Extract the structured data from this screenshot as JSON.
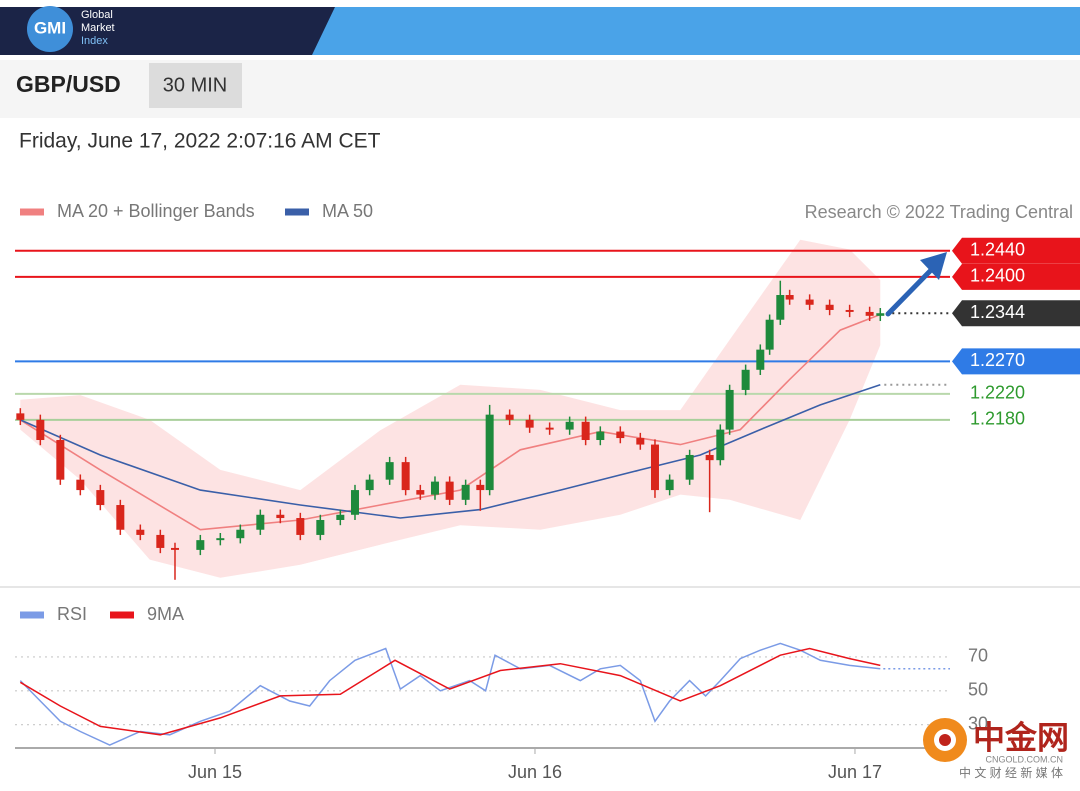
{
  "header": {
    "logo": "GMI",
    "brand": [
      "Global",
      "Market",
      "Index"
    ]
  },
  "instrument": "GBP/USD",
  "timeframe": "30 MIN",
  "timestamp": "Friday, June 17, 2022 2:07:16 AM CET",
  "watermark": {
    "name": "中金网",
    "site": "CNGOLD.COM.CN",
    "slogan": "中 文 财 经 新 媒 体"
  },
  "chart_data": [
    {
      "type": "candlestick",
      "credit": "Research © 2022 Trading Central",
      "xlim": [
        -15,
        55
      ],
      "ylim": [
        1.1926,
        1.2472
      ],
      "up_color": "#1e8a3c",
      "down_color": "#d9261c",
      "x": [
        -14.6,
        -13.1,
        -11.6,
        -10.1,
        -8.6,
        -7.1,
        -5.6,
        -4.1,
        -3,
        -1.1,
        0.4,
        1.9,
        3.4,
        4.9,
        6.4,
        7.9,
        9.4,
        10.5,
        11.6,
        13.1,
        14.3,
        15.4,
        16.5,
        17.6,
        18.8,
        19.9,
        20.6,
        22.1,
        23.6,
        25.1,
        26.6,
        27.8,
        28.9,
        30.4,
        31.9,
        33,
        34.1,
        35.6,
        37.1,
        37.9,
        38.6,
        39.8,
        40.9,
        41.6,
        42.4,
        43.1,
        44.6,
        46.1,
        47.6,
        49.1,
        49.9
      ],
      "open": [
        1.219,
        1.218,
        1.2149,
        1.2088,
        1.2072,
        1.2049,
        1.2011,
        1.2003,
        1.1983,
        1.198,
        1.1995,
        1.1998,
        1.2011,
        1.2034,
        1.2029,
        1.2003,
        1.2026,
        1.2034,
        1.2072,
        1.2088,
        1.2115,
        1.2072,
        1.2065,
        1.2085,
        1.2057,
        1.208,
        1.2072,
        1.2188,
        1.218,
        1.2168,
        1.2165,
        1.2177,
        1.2149,
        1.2162,
        1.2152,
        1.2142,
        1.2072,
        1.2088,
        1.2126,
        1.2118,
        1.2165,
        1.2226,
        1.2257,
        1.2288,
        1.2334,
        1.2372,
        1.2365,
        1.2357,
        1.2349,
        1.2346,
        1.234
      ],
      "high": [
        1.2198,
        1.2188,
        1.2157,
        1.2096,
        1.208,
        1.2057,
        1.2019,
        1.2011,
        1.1991,
        1.2003,
        1.2006,
        1.2019,
        1.2042,
        1.2042,
        1.2037,
        1.2034,
        1.2042,
        1.208,
        1.2096,
        1.2123,
        1.2123,
        1.208,
        1.2093,
        1.2093,
        1.2088,
        1.2088,
        1.2203,
        1.2196,
        1.2188,
        1.2176,
        1.2185,
        1.2185,
        1.217,
        1.217,
        1.216,
        1.215,
        1.2096,
        1.2134,
        1.2134,
        1.2173,
        1.2234,
        1.2265,
        1.2296,
        1.2342,
        1.2394,
        1.238,
        1.2373,
        1.2365,
        1.2357,
        1.2354,
        1.2352
      ],
      "low": [
        1.2172,
        1.2141,
        1.208,
        1.2064,
        1.2041,
        1.2003,
        1.1995,
        1.1975,
        1.1934,
        1.1972,
        1.1987,
        1.199,
        1.2003,
        1.2021,
        1.1995,
        1.1995,
        1.2018,
        1.2026,
        1.2064,
        1.208,
        1.2064,
        1.2057,
        1.2057,
        1.2049,
        1.2049,
        1.204,
        1.2064,
        1.2172,
        1.216,
        1.2157,
        1.2157,
        1.2141,
        1.2141,
        1.2144,
        1.2134,
        1.206,
        1.2064,
        1.208,
        1.2038,
        1.211,
        1.2157,
        1.2218,
        1.2249,
        1.228,
        1.2326,
        1.2357,
        1.2349,
        1.2341,
        1.2338,
        1.2332,
        1.2332
      ],
      "close": [
        1.218,
        1.2149,
        1.2088,
        1.2072,
        1.2049,
        1.2011,
        1.2003,
        1.1983,
        1.198,
        1.1995,
        1.1998,
        1.2011,
        1.2034,
        1.2029,
        1.2003,
        1.2026,
        1.2034,
        1.2072,
        1.2088,
        1.2115,
        1.2072,
        1.2065,
        1.2085,
        1.2057,
        1.208,
        1.2072,
        1.2188,
        1.218,
        1.2168,
        1.2165,
        1.2177,
        1.2149,
        1.2162,
        1.2152,
        1.2142,
        1.2072,
        1.2088,
        1.2126,
        1.2118,
        1.2165,
        1.2226,
        1.2257,
        1.2288,
        1.2334,
        1.2372,
        1.2365,
        1.2357,
        1.2349,
        1.2346,
        1.234,
        1.2344
      ],
      "band": {
        "color": "#fcd9d9",
        "x": [
          -14.6,
          -10.1,
          -4.9,
          0.4,
          6.4,
          12.4,
          18.4,
          24.4,
          30.4,
          34.9,
          38.6,
          43.9,
          47.6,
          49.9
        ],
        "upper": [
          1.2211,
          1.2218,
          1.218,
          1.2103,
          1.2072,
          1.2164,
          1.2234,
          1.2226,
          1.2195,
          1.2195,
          1.2303,
          1.2457,
          1.2442,
          1.2395
        ],
        "lower": [
          1.2165,
          1.2088,
          1.1965,
          1.1937,
          1.1957,
          1.1988,
          1.2018,
          1.2011,
          1.2034,
          1.2065,
          1.2057,
          1.2026,
          1.218,
          1.2295
        ]
      },
      "series": [
        {
          "name": "MA 20 + Bollinger Bands",
          "color": "#f08080",
          "x": [
            -14.6,
            -8.6,
            -1.1,
            6.4,
            12.4,
            18.4,
            22.9,
            28.9,
            34.9,
            39.4,
            43.1,
            46.9,
            49.9
          ],
          "values": [
            1.218,
            1.2103,
            1.2011,
            1.2026,
            1.2049,
            1.2072,
            1.2134,
            1.2162,
            1.2142,
            1.2165,
            1.2242,
            1.2318,
            1.2342
          ]
        },
        {
          "name": "MA 50",
          "color": "#3a5fa8",
          "x": [
            -14.6,
            -8.6,
            -1.1,
            6.4,
            13.9,
            19.9,
            25.9,
            31.9,
            36.4,
            40.9,
            45.4,
            49.9
          ],
          "values": [
            1.218,
            1.2126,
            1.2072,
            1.2049,
            1.2029,
            1.2042,
            1.2072,
            1.2103,
            1.2126,
            1.2165,
            1.2203,
            1.2234
          ]
        }
      ],
      "levels": [
        {
          "value": 1.244,
          "label": "1.2440",
          "color": "#e8141b",
          "box": true
        },
        {
          "value": 1.24,
          "label": "1.2400",
          "color": "#e8141b",
          "box": true
        },
        {
          "value": 1.2344,
          "label": "1.2344",
          "color": "#333333",
          "box": true,
          "dotted": true
        },
        {
          "value": 1.227,
          "label": "1.2270",
          "color": "#2f7be6",
          "box": true
        },
        {
          "value": 1.222,
          "label": "1.2220",
          "color": "#2e9a2e",
          "line_color": "#b9d8ac",
          "box": false
        },
        {
          "value": 1.218,
          "label": "1.2180",
          "color": "#2e9a2e",
          "line_color": "#a9cf9b",
          "box": false
        }
      ]
    },
    {
      "type": "line",
      "xlim": [
        -15,
        55
      ],
      "ylim": [
        18,
        80
      ],
      "yticks": [
        30,
        50,
        70
      ],
      "xticks": [
        {
          "value": 0,
          "label": "Jun 15"
        },
        {
          "value": 24,
          "label": "Jun 16"
        },
        {
          "value": 48,
          "label": "Jun 17"
        }
      ],
      "series": [
        {
          "name": "RSI",
          "color": "#7b9be6",
          "x": [
            -14.6,
            -13.1,
            -11.6,
            -10.1,
            -7.9,
            -5.6,
            -3.4,
            -1.1,
            1.1,
            3.4,
            5.6,
            7.1,
            8.6,
            10.5,
            12.8,
            13.9,
            15.4,
            16.9,
            19.1,
            20.3,
            21,
            22.9,
            25.1,
            27.4,
            28.9,
            30.4,
            31.9,
            33,
            34.1,
            35.6,
            36.8,
            37.9,
            39.4,
            40.9,
            42.4,
            43.9,
            45.4,
            47.6,
            49.9
          ],
          "values": [
            56,
            44,
            32,
            26,
            18,
            26,
            24,
            32,
            38,
            53,
            44,
            41,
            56,
            68,
            75,
            51,
            59,
            50,
            56,
            50,
            71,
            63,
            65,
            56,
            63,
            65,
            56,
            32,
            44,
            56,
            47,
            56,
            69,
            74,
            78,
            74,
            68,
            65,
            63
          ]
        },
        {
          "name": "9MA",
          "color": "#e8141b",
          "x": [
            -14.6,
            -11.6,
            -8.6,
            -4.1,
            0.4,
            4.9,
            9.4,
            13.5,
            17.6,
            21.4,
            25.9,
            30.4,
            34.9,
            37.9,
            42.4,
            44.6,
            47.6,
            49.9
          ],
          "values": [
            55,
            41,
            29,
            24,
            34,
            47,
            48,
            68,
            51,
            62,
            66,
            59,
            44,
            53,
            71,
            75,
            69,
            65
          ]
        }
      ]
    }
  ]
}
